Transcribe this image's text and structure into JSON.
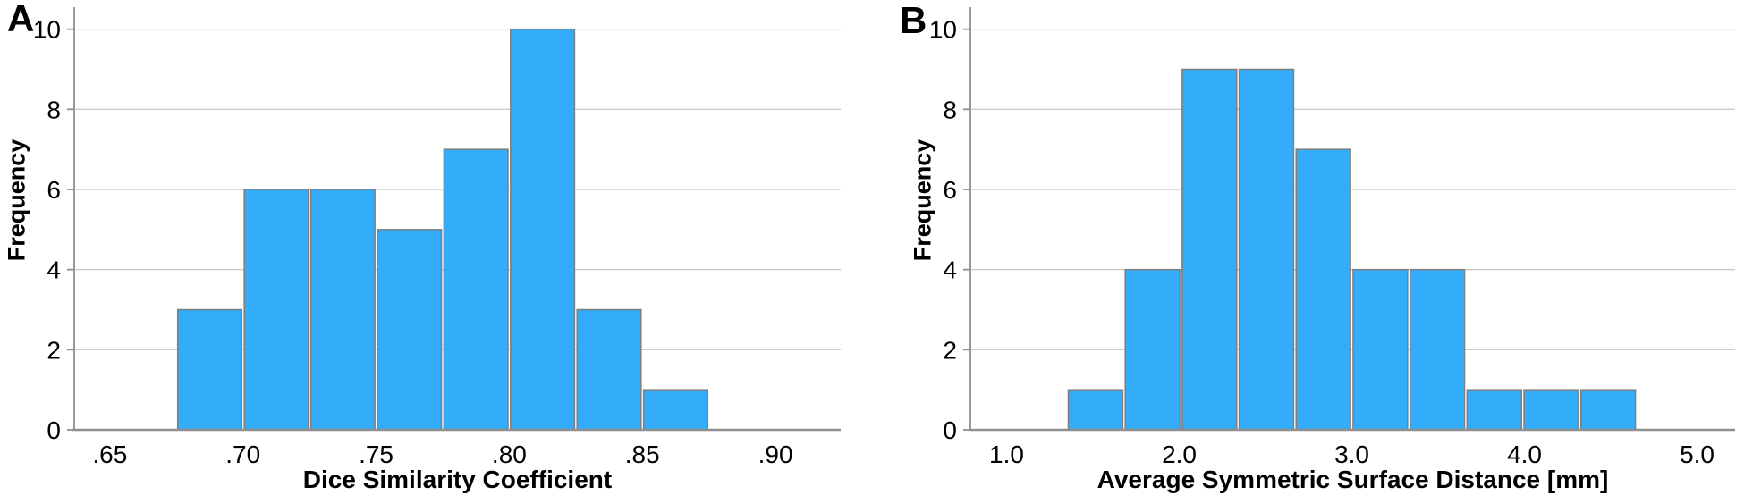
{
  "figure": {
    "background": "#FFFFFF",
    "colors": {
      "bar_fill": "#33ACF9",
      "bar_stroke": "#7E7E7E",
      "grid": "#CBCBCB",
      "axis": "#8F8F8F",
      "text": "#000000"
    }
  },
  "chart_data": [
    {
      "type": "bar",
      "chart_kind": "histogram",
      "panel_label": "A",
      "xlabel": "Dice Similarity Coefficient",
      "ylabel": "Frequency",
      "values": [
        3,
        6,
        6,
        5,
        7,
        10,
        3,
        1
      ],
      "bin_start": 0.675,
      "bin_width": 0.025,
      "bin_edges": [
        0.675,
        0.7,
        0.725,
        0.75,
        0.775,
        0.8,
        0.825,
        0.85,
        0.875
      ],
      "xlim": [
        0.6366,
        0.9245
      ],
      "ylim": [
        0,
        10.55
      ],
      "x_ticks": [
        {
          "v": 0.65,
          "label": ".65"
        },
        {
          "v": 0.7,
          "label": ".70"
        },
        {
          "v": 0.75,
          "label": ".75"
        },
        {
          "v": 0.8,
          "label": ".80"
        },
        {
          "v": 0.85,
          "label": ".85"
        },
        {
          "v": 0.9,
          "label": ".90"
        }
      ],
      "y_ticks": [
        {
          "v": 0,
          "label": "0"
        },
        {
          "v": 2,
          "label": "2"
        },
        {
          "v": 4,
          "label": "4"
        },
        {
          "v": 6,
          "label": "6"
        },
        {
          "v": 8,
          "label": "8"
        },
        {
          "v": 10,
          "label": "10"
        }
      ],
      "grid": "horizontal",
      "legend": "none"
    },
    {
      "type": "bar",
      "chart_kind": "histogram",
      "panel_label": "B",
      "xlabel": "Average Symmetric Surface Distance [mm]",
      "ylabel": "Frequency",
      "values": [
        1,
        4,
        9,
        9,
        7,
        4,
        4,
        1,
        1,
        1
      ],
      "bin_start": 1.35,
      "bin_width": 0.33,
      "bin_edges": [
        1.35,
        1.68,
        2.01,
        2.34,
        2.67,
        3.0,
        3.33,
        3.66,
        3.99,
        4.32,
        4.65
      ],
      "xlim": [
        0.79,
        5.22
      ],
      "ylim": [
        0,
        10.55
      ],
      "x_ticks": [
        {
          "v": 1.0,
          "label": "1.0"
        },
        {
          "v": 2.0,
          "label": "2.0"
        },
        {
          "v": 3.0,
          "label": "3.0"
        },
        {
          "v": 4.0,
          "label": "4.0"
        },
        {
          "v": 5.0,
          "label": "5.0"
        }
      ],
      "y_ticks": [
        {
          "v": 0,
          "label": "0"
        },
        {
          "v": 2,
          "label": "2"
        },
        {
          "v": 4,
          "label": "4"
        },
        {
          "v": 6,
          "label": "6"
        },
        {
          "v": 8,
          "label": "8"
        },
        {
          "v": 10,
          "label": "10"
        }
      ],
      "grid": "horizontal",
      "legend": "none"
    }
  ]
}
